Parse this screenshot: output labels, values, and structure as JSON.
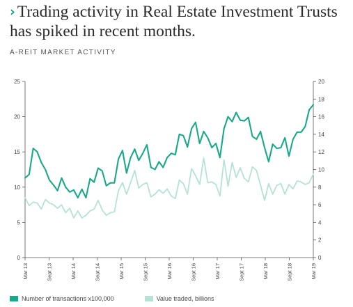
{
  "header": {
    "chevron": "›",
    "title": "Trading activity in Real Estate Investment Trusts has spiked in recent months.",
    "subtitle": "A-REIT MARKET ACTIVITY"
  },
  "colors": {
    "series1": "#1aa88a",
    "series2": "#b4e2d7",
    "axis": "#555555"
  },
  "chart_data": {
    "type": "line",
    "title": "A-REIT MARKET ACTIVITY",
    "x_tick_labels": [
      "Mar 13",
      "Sept 13",
      "Mar 14",
      "Sept 14",
      "Mar 15",
      "Sept 15",
      "Mar 16",
      "Sept 16",
      "Mar 17",
      "Sept 17",
      "Mar 18",
      "Sept 18",
      "Mar 19"
    ],
    "x_range": [
      "Mar 13",
      "Mar 19"
    ],
    "left_axis": {
      "ylim": [
        0,
        25
      ],
      "ticks": [
        "0",
        "5",
        "10",
        "15",
        "20",
        "25"
      ]
    },
    "right_axis": {
      "ylim": [
        0,
        20
      ],
      "ticks": [
        "0",
        "2",
        "4",
        "6",
        "8",
        "10",
        "12",
        "14",
        "16",
        "18",
        "20"
      ]
    },
    "grid": false,
    "legend_position": "bottom",
    "series": [
      {
        "name": "Number of transactions x100,000",
        "axis": "left",
        "values": [
          11.3,
          11.8,
          15.5,
          15.0,
          13.5,
          12.5,
          11.0,
          10.3,
          9.5,
          11.3,
          10.0,
          9.3,
          9.6,
          8.5,
          9.7,
          8.5,
          11.2,
          10.7,
          12.7,
          12.3,
          10.2,
          10.6,
          10.6,
          14.0,
          15.2,
          12.0,
          14.2,
          15.4,
          13.8,
          14.8,
          16.0,
          12.8,
          12.5,
          13.6,
          12.8,
          14.2,
          14.8,
          14.6,
          17.5,
          17.3,
          15.7,
          18.3,
          19.2,
          16.2,
          17.9,
          17.0,
          15.6,
          16.2,
          14.2,
          18.3,
          20.0,
          19.3,
          20.6,
          19.5,
          19.4,
          19.9,
          17.2,
          16.8,
          17.9,
          15.6,
          13.6,
          16.1,
          15.5,
          15.6,
          17.0,
          14.4,
          16.8,
          17.8,
          17.8,
          18.6,
          21.0,
          21.7
        ]
      },
      {
        "name": "Value traded, billions",
        "axis": "right",
        "values": [
          6.8,
          5.9,
          6.3,
          6.2,
          5.5,
          6.6,
          6.2,
          6.0,
          5.6,
          6.0,
          5.1,
          5.6,
          4.5,
          5.3,
          4.5,
          4.8,
          5.3,
          5.5,
          6.5,
          5.4,
          4.8,
          5.1,
          5.2,
          7.6,
          8.5,
          7.2,
          8.5,
          9.9,
          7.9,
          8.3,
          8.5,
          6.9,
          7.2,
          7.7,
          7.3,
          7.8,
          7.0,
          6.7,
          8.8,
          8.4,
          7.2,
          10.1,
          9.3,
          8.3,
          11.3,
          8.5,
          8.6,
          8.3,
          7.0,
          11.1,
          8.1,
          10.8,
          9.1,
          10.2,
          9.0,
          8.6,
          10.3,
          9.9,
          8.2,
          6.5,
          8.4,
          7.2,
          8.2,
          8.4,
          7.2,
          8.3,
          7.8,
          8.7,
          8.6,
          8.3,
          8.5,
          9.5
        ]
      }
    ]
  }
}
